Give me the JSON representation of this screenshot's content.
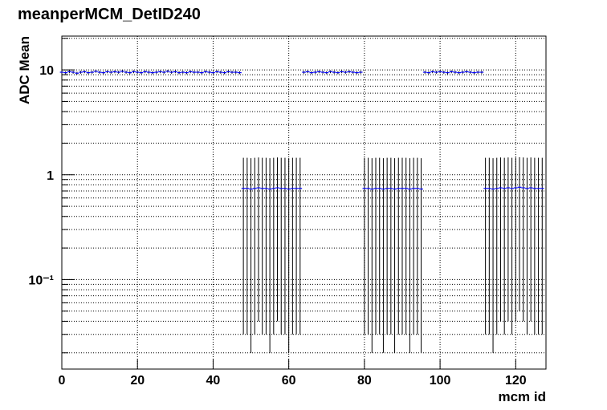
{
  "chart_data": {
    "type": "errorbar",
    "title": "meanperMCM_DetID240",
    "xlabel": "mcm id",
    "ylabel": "ADC Mean",
    "log_y": true,
    "grid": true,
    "color": "#0000ff",
    "error_color": "#000000",
    "xlim": [
      0,
      128
    ],
    "xticks": [
      0,
      20,
      40,
      60,
      80,
      100,
      120
    ],
    "ylim": [
      0.014,
      21
    ],
    "yticks": [
      {
        "value": 0.1,
        "label": "10⁻¹"
      },
      1,
      10
    ],
    "yminorticks": [
      0.02,
      0.03,
      0.04,
      0.05,
      0.06,
      0.07,
      0.08,
      0.09,
      0.2,
      0.3,
      0.4,
      0.5,
      0.6,
      0.7,
      0.8,
      0.9,
      2,
      3,
      4,
      5,
      6,
      7,
      8,
      9,
      20
    ],
    "x": [
      0,
      1,
      2,
      3,
      4,
      5,
      6,
      7,
      8,
      9,
      10,
      11,
      12,
      13,
      14,
      15,
      16,
      17,
      18,
      19,
      20,
      21,
      22,
      23,
      24,
      25,
      26,
      27,
      28,
      29,
      30,
      31,
      32,
      33,
      34,
      35,
      36,
      37,
      38,
      39,
      40,
      41,
      42,
      43,
      44,
      45,
      46,
      47,
      48,
      49,
      50,
      51,
      52,
      53,
      54,
      55,
      56,
      57,
      58,
      59,
      60,
      61,
      62,
      63,
      64,
      65,
      66,
      67,
      68,
      69,
      70,
      71,
      72,
      73,
      74,
      75,
      76,
      77,
      78,
      79,
      80,
      81,
      82,
      83,
      84,
      85,
      86,
      87,
      88,
      89,
      90,
      91,
      92,
      93,
      94,
      95,
      96,
      97,
      98,
      99,
      100,
      101,
      102,
      103,
      104,
      105,
      106,
      107,
      108,
      109,
      110,
      111,
      112,
      113,
      114,
      115,
      116,
      117,
      118,
      119,
      120,
      121,
      122,
      123,
      124,
      125,
      126,
      127
    ],
    "values": [
      9.5,
      9.4,
      9.6,
      9.5,
      9.3,
      9.5,
      9.6,
      9.4,
      9.5,
      9.7,
      9.5,
      9.4,
      9.6,
      9.5,
      9.6,
      9.5,
      9.7,
      9.5,
      9.4,
      9.6,
      9.5,
      9.4,
      9.6,
      9.5,
      9.4,
      9.5,
      9.6,
      9.5,
      9.7,
      9.5,
      9.6,
      9.4,
      9.5,
      9.4,
      9.6,
      9.5,
      9.5,
      9.4,
      9.6,
      9.5,
      9.4,
      9.6,
      9.5,
      9.4,
      9.6,
      9.5,
      9.5,
      9.4,
      0.74,
      0.74,
      0.73,
      0.74,
      0.75,
      0.74,
      0.74,
      0.73,
      0.74,
      0.75,
      0.74,
      0.74,
      0.73,
      0.74,
      0.74,
      0.74,
      9.5,
      9.6,
      9.4,
      9.5,
      9.6,
      9.5,
      9.4,
      9.6,
      9.5,
      9.4,
      9.6,
      9.5,
      9.6,
      9.5,
      9.4,
      9.5,
      0.74,
      0.74,
      0.73,
      0.74,
      0.74,
      0.73,
      0.74,
      0.74,
      0.73,
      0.74,
      0.74,
      0.74,
      0.73,
      0.74,
      0.74,
      0.73,
      9.5,
      9.4,
      9.6,
      9.5,
      9.6,
      9.5,
      9.4,
      9.6,
      9.5,
      9.4,
      9.5,
      9.6,
      9.5,
      9.4,
      9.5,
      9.5,
      0.74,
      0.74,
      0.73,
      0.74,
      0.75,
      0.74,
      0.75,
      0.74,
      0.75,
      0.76,
      0.75,
      0.74,
      0.75,
      0.74,
      0.74,
      0.74
    ],
    "errors": [
      0.3,
      0.3,
      0.3,
      0.3,
      0.3,
      0.3,
      0.3,
      0.3,
      0.3,
      0.3,
      0.3,
      0.3,
      0.3,
      0.3,
      0.3,
      0.3,
      0.3,
      0.3,
      0.3,
      0.3,
      0.3,
      0.3,
      0.3,
      0.3,
      0.3,
      0.3,
      0.3,
      0.3,
      0.3,
      0.3,
      0.3,
      0.3,
      0.3,
      0.3,
      0.3,
      0.3,
      0.3,
      0.3,
      0.3,
      0.3,
      0.3,
      0.3,
      0.3,
      0.3,
      0.3,
      0.3,
      0.3,
      0.3,
      0.71,
      0.71,
      0.71,
      0.71,
      0.71,
      0.71,
      0.71,
      0.71,
      0.71,
      0.71,
      0.71,
      0.71,
      0.71,
      0.71,
      0.71,
      0.71,
      0.3,
      0.3,
      0.3,
      0.3,
      0.3,
      0.3,
      0.3,
      0.3,
      0.3,
      0.3,
      0.3,
      0.3,
      0.3,
      0.3,
      0.3,
      0.3,
      0.71,
      0.71,
      0.71,
      0.71,
      0.71,
      0.71,
      0.71,
      0.71,
      0.71,
      0.71,
      0.71,
      0.71,
      0.71,
      0.71,
      0.71,
      0.71,
      0.3,
      0.3,
      0.3,
      0.3,
      0.3,
      0.3,
      0.3,
      0.3,
      0.3,
      0.3,
      0.3,
      0.3,
      0.3,
      0.3,
      0.3,
      0.3,
      0.71,
      0.71,
      0.71,
      0.71,
      0.71,
      0.71,
      0.71,
      0.71,
      0.71,
      0.71,
      0.71,
      0.71,
      0.71,
      0.71,
      0.71,
      0.71
    ]
  }
}
